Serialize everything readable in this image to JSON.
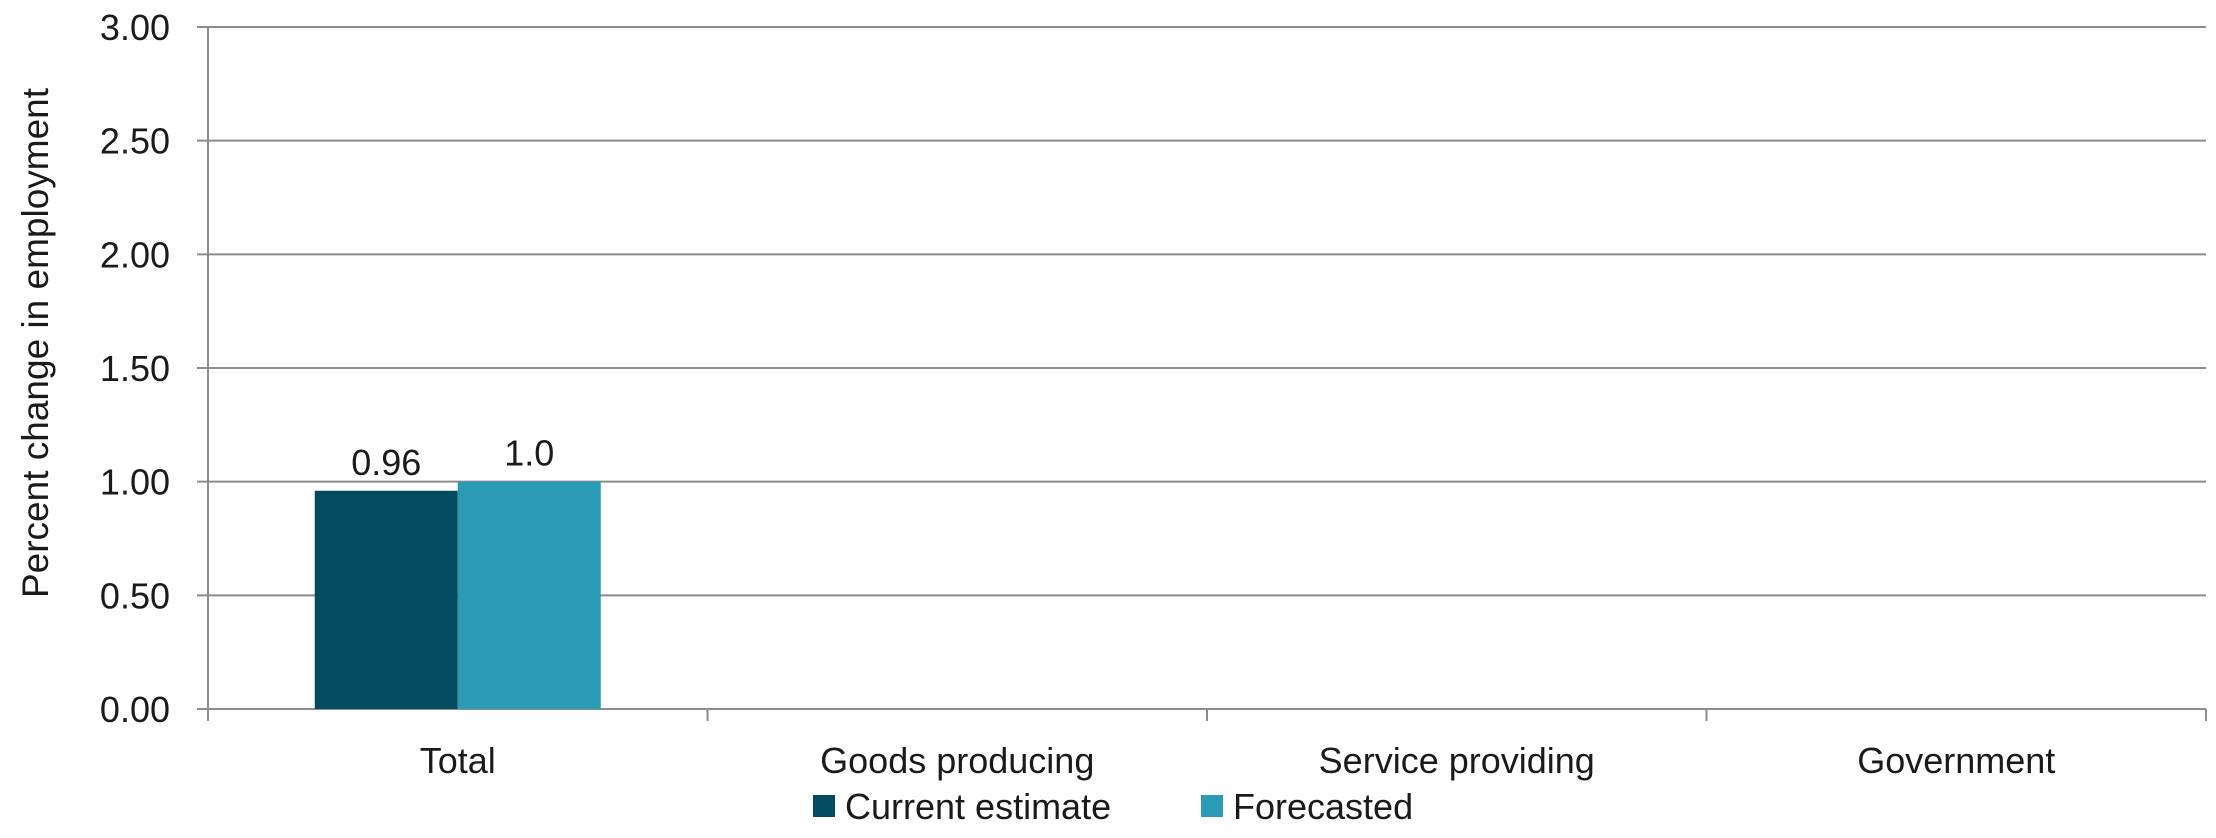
{
  "chart_data": {
    "type": "bar",
    "categories": [
      "Total",
      "Goods producing",
      "Service providing",
      "Government"
    ],
    "series": [
      {
        "name": "Current estimate",
        "values": [
          0.96,
          null,
          null,
          null
        ],
        "labels": [
          "0.96",
          "",
          "",
          ""
        ],
        "color": "#034B5E"
      },
      {
        "name": "Forecasted",
        "values": [
          1.0,
          null,
          null,
          null
        ],
        "labels": [
          "1.0",
          "",
          "",
          ""
        ],
        "color": "#2B9AB5"
      }
    ],
    "title": "",
    "xlabel": "",
    "ylabel": "Percent change in employment",
    "ylim": [
      0,
      3
    ],
    "yticks": [
      "0.00",
      "0.50",
      "1.00",
      "1.50",
      "2.00",
      "2.50",
      "3.00"
    ],
    "grid": true,
    "gridline_color": "#8c8c8c",
    "legend_position": "bottom"
  }
}
